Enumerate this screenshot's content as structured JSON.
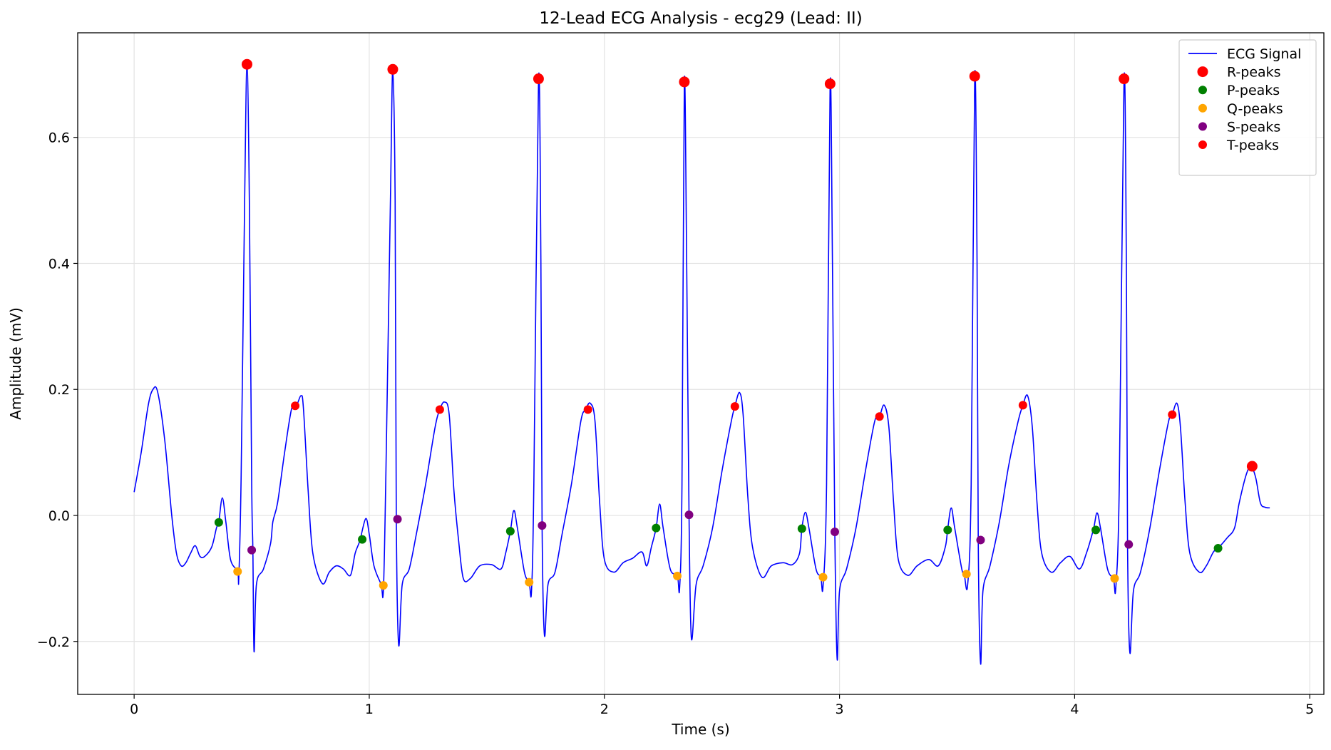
{
  "chart_data": {
    "type": "line",
    "title": "12-Lead ECG Analysis - ecg29 (Lead: II)",
    "xlabel": "Time (s)",
    "ylabel": "Amplitude (mV)",
    "xlim": [
      -0.24,
      5.06
    ],
    "ylim": [
      -0.284,
      0.766
    ],
    "xticks": [
      0,
      1,
      2,
      3,
      4,
      5
    ],
    "xtick_labels": [
      "0",
      "1",
      "2",
      "3",
      "4",
      "5"
    ],
    "yticks": [
      -0.2,
      0.0,
      0.2,
      0.4,
      0.6
    ],
    "ytick_labels": [
      "−0.2",
      "0.0",
      "0.2",
      "0.4",
      "0.6"
    ],
    "grid": true,
    "legend_position": "top-right",
    "colors": {
      "ecg": "#0000ff",
      "r_peaks": "#ff0000",
      "p_peaks": "#008000",
      "q_peaks": "#ffa500",
      "s_peaks": "#800080",
      "t_peaks": "#ff0000"
    },
    "ecg_signal": {
      "name": "ECG Signal",
      "keypoints": [
        [
          0.0,
          0.037
        ],
        [
          0.03,
          0.1
        ],
        [
          0.06,
          0.175
        ],
        [
          0.08,
          0.2
        ],
        [
          0.1,
          0.196
        ],
        [
          0.13,
          0.12
        ],
        [
          0.16,
          0.0
        ],
        [
          0.18,
          -0.06
        ],
        [
          0.2,
          -0.08
        ],
        [
          0.22,
          -0.075
        ],
        [
          0.24,
          -0.06
        ],
        [
          0.26,
          -0.048
        ],
        [
          0.28,
          -0.065
        ],
        [
          0.3,
          -0.065
        ],
        [
          0.33,
          -0.05
        ],
        [
          0.35,
          -0.02
        ],
        [
          0.36,
          -0.01
        ],
        [
          0.375,
          0.028
        ],
        [
          0.39,
          -0.01
        ],
        [
          0.41,
          -0.07
        ],
        [
          0.44,
          -0.088
        ],
        [
          0.445,
          -0.1
        ],
        [
          0.455,
          0.06
        ],
        [
          0.47,
          0.5
        ],
        [
          0.48,
          0.716
        ],
        [
          0.49,
          0.5
        ],
        [
          0.5,
          0.05
        ],
        [
          0.505,
          -0.055
        ],
        [
          0.51,
          -0.216
        ],
        [
          0.52,
          -0.11
        ],
        [
          0.55,
          -0.085
        ],
        [
          0.58,
          -0.045
        ],
        [
          0.59,
          -0.01
        ],
        [
          0.61,
          0.02
        ],
        [
          0.64,
          0.1
        ],
        [
          0.67,
          0.17
        ],
        [
          0.69,
          0.174
        ],
        [
          0.71,
          0.19
        ],
        [
          0.72,
          0.17
        ],
        [
          0.74,
          0.04
        ],
        [
          0.76,
          -0.06
        ],
        [
          0.8,
          -0.108
        ],
        [
          0.83,
          -0.09
        ],
        [
          0.86,
          -0.08
        ],
        [
          0.89,
          -0.085
        ],
        [
          0.92,
          -0.095
        ],
        [
          0.94,
          -0.06
        ],
        [
          0.96,
          -0.04
        ],
        [
          0.985,
          -0.005
        ],
        [
          1.0,
          -0.03
        ],
        [
          1.02,
          -0.08
        ],
        [
          1.05,
          -0.109
        ],
        [
          1.06,
          -0.12
        ],
        [
          1.07,
          0.05
        ],
        [
          1.09,
          0.5
        ],
        [
          1.1,
          0.708
        ],
        [
          1.11,
          0.5
        ],
        [
          1.115,
          -0.005
        ],
        [
          1.125,
          -0.205
        ],
        [
          1.14,
          -0.11
        ],
        [
          1.17,
          -0.085
        ],
        [
          1.2,
          -0.03
        ],
        [
          1.24,
          0.05
        ],
        [
          1.28,
          0.14
        ],
        [
          1.3,
          0.168
        ],
        [
          1.32,
          0.18
        ],
        [
          1.34,
          0.16
        ],
        [
          1.36,
          0.04
        ],
        [
          1.38,
          -0.04
        ],
        [
          1.4,
          -0.1
        ],
        [
          1.43,
          -0.1
        ],
        [
          1.47,
          -0.08
        ],
        [
          1.52,
          -0.078
        ],
        [
          1.56,
          -0.085
        ],
        [
          1.58,
          -0.06
        ],
        [
          1.6,
          -0.025
        ],
        [
          1.615,
          0.008
        ],
        [
          1.63,
          -0.02
        ],
        [
          1.66,
          -0.09
        ],
        [
          1.68,
          -0.106
        ],
        [
          1.69,
          -0.12
        ],
        [
          1.7,
          0.05
        ],
        [
          1.72,
          0.693
        ],
        [
          1.73,
          0.4
        ],
        [
          1.735,
          -0.015
        ],
        [
          1.745,
          -0.19
        ],
        [
          1.76,
          -0.11
        ],
        [
          1.79,
          -0.09
        ],
        [
          1.82,
          -0.03
        ],
        [
          1.86,
          0.05
        ],
        [
          1.9,
          0.15
        ],
        [
          1.92,
          0.168
        ],
        [
          1.94,
          0.178
        ],
        [
          1.96,
          0.15
        ],
        [
          1.98,
          0.02
        ],
        [
          2.0,
          -0.07
        ],
        [
          2.04,
          -0.09
        ],
        [
          2.08,
          -0.075
        ],
        [
          2.12,
          -0.068
        ],
        [
          2.16,
          -0.058
        ],
        [
          2.18,
          -0.08
        ],
        [
          2.2,
          -0.05
        ],
        [
          2.22,
          -0.02
        ],
        [
          2.235,
          0.018
        ],
        [
          2.25,
          -0.02
        ],
        [
          2.28,
          -0.085
        ],
        [
          2.31,
          -0.095
        ],
        [
          2.32,
          -0.115
        ],
        [
          2.33,
          0.05
        ],
        [
          2.34,
          0.688
        ],
        [
          2.35,
          0.4
        ],
        [
          2.36,
          0.0
        ],
        [
          2.37,
          -0.195
        ],
        [
          2.39,
          -0.11
        ],
        [
          2.42,
          -0.08
        ],
        [
          2.46,
          -0.02
        ],
        [
          2.5,
          0.07
        ],
        [
          2.54,
          0.15
        ],
        [
          2.555,
          0.173
        ],
        [
          2.575,
          0.195
        ],
        [
          2.59,
          0.16
        ],
        [
          2.61,
          0.03
        ],
        [
          2.63,
          -0.05
        ],
        [
          2.67,
          -0.098
        ],
        [
          2.71,
          -0.08
        ],
        [
          2.76,
          -0.075
        ],
        [
          2.8,
          -0.078
        ],
        [
          2.83,
          -0.06
        ],
        [
          2.84,
          -0.02
        ],
        [
          2.855,
          0.005
        ],
        [
          2.87,
          -0.02
        ],
        [
          2.9,
          -0.085
        ],
        [
          2.92,
          -0.097
        ],
        [
          2.93,
          -0.112
        ],
        [
          2.945,
          0.05
        ],
        [
          2.96,
          0.685
        ],
        [
          2.97,
          0.4
        ],
        [
          2.98,
          -0.026
        ],
        [
          2.99,
          -0.228
        ],
        [
          3.0,
          -0.12
        ],
        [
          3.03,
          -0.085
        ],
        [
          3.07,
          -0.02
        ],
        [
          3.11,
          0.07
        ],
        [
          3.15,
          0.15
        ],
        [
          3.17,
          0.157
        ],
        [
          3.19,
          0.175
        ],
        [
          3.21,
          0.14
        ],
        [
          3.23,
          0.02
        ],
        [
          3.25,
          -0.07
        ],
        [
          3.29,
          -0.095
        ],
        [
          3.33,
          -0.08
        ],
        [
          3.38,
          -0.07
        ],
        [
          3.42,
          -0.08
        ],
        [
          3.45,
          -0.05
        ],
        [
          3.46,
          -0.022
        ],
        [
          3.475,
          0.012
        ],
        [
          3.49,
          -0.02
        ],
        [
          3.52,
          -0.085
        ],
        [
          3.53,
          -0.092
        ],
        [
          3.545,
          -0.11
        ],
        [
          3.56,
          0.05
        ],
        [
          3.575,
          0.697
        ],
        [
          3.585,
          0.4
        ],
        [
          3.59,
          -0.04
        ],
        [
          3.6,
          -0.235
        ],
        [
          3.61,
          -0.12
        ],
        [
          3.64,
          -0.08
        ],
        [
          3.68,
          -0.01
        ],
        [
          3.72,
          0.08
        ],
        [
          3.76,
          0.15
        ],
        [
          3.78,
          0.175
        ],
        [
          3.8,
          0.19
        ],
        [
          3.82,
          0.14
        ],
        [
          3.84,
          0.02
        ],
        [
          3.86,
          -0.06
        ],
        [
          3.9,
          -0.09
        ],
        [
          3.94,
          -0.075
        ],
        [
          3.98,
          -0.065
        ],
        [
          4.02,
          -0.085
        ],
        [
          4.05,
          -0.06
        ],
        [
          4.08,
          -0.022
        ],
        [
          4.095,
          0.004
        ],
        [
          4.11,
          -0.02
        ],
        [
          4.14,
          -0.085
        ],
        [
          4.165,
          -0.1
        ],
        [
          4.175,
          -0.115
        ],
        [
          4.19,
          0.05
        ],
        [
          4.21,
          0.693
        ],
        [
          4.22,
          0.4
        ],
        [
          4.225,
          -0.046
        ],
        [
          4.235,
          -0.218
        ],
        [
          4.25,
          -0.12
        ],
        [
          4.28,
          -0.09
        ],
        [
          4.32,
          -0.02
        ],
        [
          4.36,
          0.07
        ],
        [
          4.4,
          0.15
        ],
        [
          4.415,
          0.16
        ],
        [
          4.435,
          0.178
        ],
        [
          4.45,
          0.14
        ],
        [
          4.47,
          0.02
        ],
        [
          4.49,
          -0.06
        ],
        [
          4.53,
          -0.09
        ],
        [
          4.56,
          -0.08
        ],
        [
          4.59,
          -0.058
        ],
        [
          4.61,
          -0.052
        ],
        [
          4.65,
          -0.035
        ],
        [
          4.68,
          -0.02
        ],
        [
          4.7,
          0.02
        ],
        [
          4.73,
          0.065
        ],
        [
          4.75,
          0.078
        ],
        [
          4.77,
          0.06
        ],
        [
          4.79,
          0.02
        ],
        [
          4.81,
          0.013
        ],
        [
          4.83,
          0.012
        ]
      ]
    },
    "markers": [
      {
        "name": "R-peaks",
        "size": "large",
        "points": [
          [
            0.48,
            0.716
          ],
          [
            1.1,
            0.708
          ],
          [
            1.72,
            0.693
          ],
          [
            2.34,
            0.688
          ],
          [
            2.96,
            0.685
          ],
          [
            3.575,
            0.697
          ],
          [
            4.21,
            0.693
          ],
          [
            4.755,
            0.078
          ]
        ]
      },
      {
        "name": "P-peaks",
        "size": "small",
        "points": [
          [
            0.36,
            -0.011
          ],
          [
            0.97,
            -0.038
          ],
          [
            1.6,
            -0.025
          ],
          [
            2.22,
            -0.02
          ],
          [
            2.84,
            -0.021
          ],
          [
            3.46,
            -0.023
          ],
          [
            4.09,
            -0.023
          ],
          [
            4.61,
            -0.052
          ]
        ]
      },
      {
        "name": "Q-peaks",
        "size": "small",
        "points": [
          [
            0.44,
            -0.089
          ],
          [
            1.06,
            -0.111
          ],
          [
            1.68,
            -0.106
          ],
          [
            2.31,
            -0.096
          ],
          [
            2.93,
            -0.098
          ],
          [
            3.54,
            -0.093
          ],
          [
            4.17,
            -0.1
          ]
        ]
      },
      {
        "name": "S-peaks",
        "size": "small",
        "points": [
          [
            0.5,
            -0.055
          ],
          [
            1.12,
            -0.006
          ],
          [
            1.735,
            -0.016
          ],
          [
            2.36,
            0.001
          ],
          [
            2.98,
            -0.026
          ],
          [
            3.6,
            -0.039
          ],
          [
            4.23,
            -0.046
          ]
        ]
      },
      {
        "name": "T-peaks",
        "size": "small",
        "points": [
          [
            0.685,
            0.174
          ],
          [
            1.3,
            0.168
          ],
          [
            1.93,
            0.168
          ],
          [
            2.555,
            0.173
          ],
          [
            3.17,
            0.157
          ],
          [
            3.78,
            0.175
          ],
          [
            4.415,
            0.16
          ]
        ]
      }
    ],
    "legend": [
      {
        "label": "ECG Signal",
        "kind": "line",
        "color": "#0000ff"
      },
      {
        "label": "R-peaks",
        "kind": "marker-large",
        "color": "#ff0000"
      },
      {
        "label": "P-peaks",
        "kind": "marker",
        "color": "#008000"
      },
      {
        "label": "Q-peaks",
        "kind": "marker",
        "color": "#ffa500"
      },
      {
        "label": "S-peaks",
        "kind": "marker",
        "color": "#800080"
      },
      {
        "label": "T-peaks",
        "kind": "marker",
        "color": "#ff0000"
      }
    ]
  }
}
